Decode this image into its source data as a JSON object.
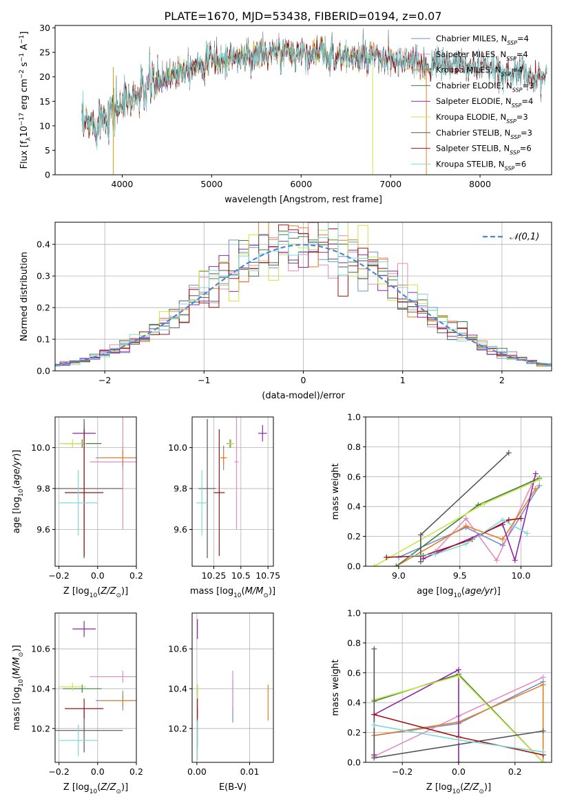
{
  "figure_title": "PLATE=1670, MJD=53438, FIBERID=0194, z=0.07",
  "colors": {
    "chabrier_miles": "#6e8fd6",
    "salpeter_miles": "#e58ac0",
    "kroupa_miles": "#e67e22",
    "chabrier_elodie": "#3e7d3e",
    "salpeter_elodie": "#8e24aa",
    "kroupa_elodie": "#c8e645",
    "chabrier_stelib": "#555555",
    "salpeter_stelib": "#a01010",
    "kroupa_stelib": "#7fd8d8",
    "normal": "#4a86d8",
    "grid": "#b0b0b0"
  },
  "chart_data": [
    {
      "type": "line",
      "id": "spectrum",
      "xlabel": "wavelength [Angstrom, rest frame]",
      "ylabel": "Flux [f_λ10^-17 erg cm^-2 s^-1 A^-1]",
      "xlim": [
        3250,
        8800
      ],
      "ylim": [
        0,
        30.5
      ],
      "xticks": [
        4000,
        5000,
        6000,
        7000,
        8000
      ],
      "yticks": [
        0,
        5,
        10,
        15,
        20,
        25,
        30
      ],
      "grid": false,
      "legend_position": "top-right",
      "continuum": {
        "x": [
          3550,
          3700,
          3900,
          4100,
          4300,
          4500,
          4700,
          4900,
          5100,
          5300,
          5500,
          5700,
          5900,
          6100,
          6300,
          6500,
          6700,
          6900,
          7100,
          7300,
          7500,
          7700,
          7900,
          8100,
          8300,
          8500,
          8700
        ],
        "y": [
          9.5,
          11.0,
          13.5,
          15.5,
          18.0,
          20.0,
          22.0,
          23.0,
          23.5,
          24.0,
          24.5,
          24.8,
          25.0,
          25.0,
          24.5,
          24.0,
          24.0,
          23.5,
          23.0,
          22.5,
          22.5,
          22.5,
          22.0,
          21.5,
          21.0,
          20.5,
          20.0
        ]
      },
      "series": [
        {
          "label": "Chabrier MILES",
          "nssp": "4",
          "color": "#6e8fd6",
          "xmax": 7400
        },
        {
          "label": "Salpeter MILES",
          "nssp": "4",
          "color": "#e58ac0",
          "xmax": 7400
        },
        {
          "label": "Kroupa MILES",
          "nssp": "4",
          "color": "#e67e22",
          "xmax": 7400
        },
        {
          "label": "Chabrier ELODIE",
          "nssp": "3",
          "color": "#3e7d3e",
          "xmax": 6800
        },
        {
          "label": "Salpeter ELODIE",
          "nssp": "4",
          "color": "#8e24aa",
          "xmax": 6800
        },
        {
          "label": "Kroupa ELODIE",
          "nssp": "3",
          "color": "#c8e645",
          "xmax": 6800
        },
        {
          "label": "Chabrier STELIB",
          "nssp": "3",
          "color": "#555555",
          "xmax": 8800
        },
        {
          "label": "Salpeter STELIB",
          "nssp": "6",
          "color": "#a01010",
          "xmax": 8800
        },
        {
          "label": "Kroupa STELIB",
          "nssp": "6",
          "color": "#7fd8d8",
          "xmax": 8800
        }
      ]
    },
    {
      "type": "histogram",
      "id": "residuals",
      "xlabel": "(data-model)/error",
      "ylabel": "Normed distribution",
      "xlim": [
        -2.5,
        2.5
      ],
      "ylim": [
        0,
        0.47
      ],
      "xticks": [
        -2,
        -1,
        0,
        1,
        2
      ],
      "yticks": [
        0.0,
        0.1,
        0.2,
        0.3,
        0.4
      ],
      "grid": true,
      "bin_width": 0.1,
      "legend_position": "top-right",
      "normal_label": "𝒩(0,1)",
      "series_colors": [
        "#6e8fd6",
        "#e58ac0",
        "#e67e22",
        "#3e7d3e",
        "#8e24aa",
        "#c8e645",
        "#555555",
        "#a01010",
        "#7fd8d8"
      ]
    },
    {
      "type": "scatter",
      "id": "age_vs_Z",
      "xlabel": "Z [log10(Z/Z☉)]",
      "ylabel": "age [log10(age/yr)]",
      "xlim": [
        -0.22,
        0.2
      ],
      "ylim": [
        9.42,
        10.15
      ],
      "xticks": [
        -0.2,
        0.0,
        0.2
      ],
      "yticks": [
        9.6,
        9.8,
        10.0
      ],
      "grid": true,
      "points": [
        {
          "x": 0.13,
          "y": 9.95,
          "xerr": 0.14,
          "yerr": 0.06,
          "color": "#6e8fd6"
        },
        {
          "x": 0.13,
          "y": 9.93,
          "xerr": 0.17,
          "yerr": 0.33,
          "color": "#e58ac0"
        },
        {
          "x": 0.13,
          "y": 9.95,
          "xerr": 0.12,
          "yerr": 0.04,
          "color": "#e67e22"
        },
        {
          "x": -0.08,
          "y": 10.02,
          "xerr": 0.1,
          "yerr": 0.02,
          "color": "#3e7d3e"
        },
        {
          "x": -0.07,
          "y": 10.07,
          "xerr": 0.06,
          "yerr": 0.04,
          "color": "#8e24aa"
        },
        {
          "x": -0.13,
          "y": 10.02,
          "xerr": 0.07,
          "yerr": 0.02,
          "color": "#c8e645"
        },
        {
          "x": -0.07,
          "y": 9.8,
          "xerr": 0.2,
          "yerr": 0.34,
          "color": "#555555"
        },
        {
          "x": -0.07,
          "y": 9.78,
          "xerr": 0.1,
          "yerr": 0.31,
          "color": "#a01010"
        },
        {
          "x": -0.1,
          "y": 9.73,
          "xerr": 0.1,
          "yerr": 0.16,
          "color": "#7fd8d8"
        }
      ]
    },
    {
      "type": "scatter",
      "id": "age_vs_mass",
      "xlabel": "mass [log10(M/M☉)]",
      "ylabel": "",
      "xlim": [
        10.05,
        10.8
      ],
      "ylim": [
        9.42,
        10.15
      ],
      "xticks": [
        10.25,
        10.5,
        10.75
      ],
      "yticks": [
        9.6,
        9.8,
        10.0
      ],
      "grid": true,
      "points": [
        {
          "x": 10.34,
          "y": 9.95,
          "xerr": 0.03,
          "yerr": 0.06,
          "color": "#6e8fd6"
        },
        {
          "x": 10.46,
          "y": 9.93,
          "xerr": 0.02,
          "yerr": 0.33,
          "color": "#e58ac0"
        },
        {
          "x": 10.34,
          "y": 9.95,
          "xerr": 0.03,
          "yerr": 0.04,
          "color": "#e67e22"
        },
        {
          "x": 10.4,
          "y": 10.02,
          "xerr": 0.03,
          "yerr": 0.02,
          "color": "#3e7d3e"
        },
        {
          "x": 10.7,
          "y": 10.07,
          "xerr": 0.04,
          "yerr": 0.04,
          "color": "#8e24aa"
        },
        {
          "x": 10.41,
          "y": 10.02,
          "xerr": 0.03,
          "yerr": 0.02,
          "color": "#c8e645"
        },
        {
          "x": 10.19,
          "y": 9.8,
          "xerr": 0.08,
          "yerr": 0.34,
          "color": "#555555"
        },
        {
          "x": 10.3,
          "y": 9.78,
          "xerr": 0.05,
          "yerr": 0.31,
          "color": "#a01010"
        },
        {
          "x": 10.14,
          "y": 9.73,
          "xerr": 0.05,
          "yerr": 0.16,
          "color": "#7fd8d8"
        }
      ]
    },
    {
      "type": "line",
      "id": "massweight_vs_age",
      "xlabel": "age [log10(age/yr)]",
      "ylabel": "mass weight",
      "xlim": [
        8.73,
        10.25
      ],
      "ylim": [
        0.0,
        1.0
      ],
      "xticks": [
        9.0,
        9.5,
        10.0
      ],
      "yticks": [
        0.0,
        0.2,
        0.4,
        0.6,
        0.8,
        1.0
      ],
      "grid": true,
      "series": [
        {
          "color": "#6e8fd6",
          "x": [
            9.0,
            9.55,
            9.85,
            10.15
          ],
          "y": [
            0.06,
            0.26,
            0.14,
            0.54
          ]
        },
        {
          "color": "#e58ac0",
          "x": [
            9.3,
            9.55,
            9.8,
            10.1
          ],
          "y": [
            0.1,
            0.32,
            0.04,
            0.57
          ]
        },
        {
          "color": "#e67e22",
          "x": [
            8.98,
            9.55,
            9.85,
            10.12
          ],
          "y": [
            0.0,
            0.27,
            0.18,
            0.52
          ]
        },
        {
          "color": "#3e7d3e",
          "x": [
            8.98,
            9.65,
            10.15
          ],
          "y": [
            0.0,
            0.41,
            0.59
          ]
        },
        {
          "color": "#8e24aa",
          "x": [
            9.2,
            9.85,
            9.95,
            10.12
          ],
          "y": [
            0.05,
            0.28,
            0.04,
            0.62
          ]
        },
        {
          "color": "#c8e645",
          "x": [
            8.8,
            9.7,
            10.15
          ],
          "y": [
            0.0,
            0.42,
            0.58
          ]
        },
        {
          "color": "#555555",
          "x": [
            9.18,
            9.18,
            9.9
          ],
          "y": [
            0.03,
            0.21,
            0.76
          ]
        },
        {
          "color": "#a01010",
          "x": [
            8.9,
            9.2,
            9.6,
            9.9,
            10.0
          ],
          "y": [
            0.06,
            0.07,
            0.18,
            0.31,
            0.32
          ]
        },
        {
          "color": "#7fd8d8",
          "x": [
            9.1,
            9.3,
            9.55,
            9.85,
            10.05
          ],
          "y": [
            0.07,
            0.08,
            0.15,
            0.31,
            0.22
          ]
        }
      ]
    },
    {
      "type": "scatter",
      "id": "mass_vs_Z",
      "xlabel": "Z [log10(Z/Z☉)]",
      "ylabel": "mass [log10(M/M☉)]",
      "xlim": [
        -0.22,
        0.2
      ],
      "ylim": [
        10.03,
        10.78
      ],
      "xticks": [
        -0.2,
        0.0,
        0.2
      ],
      "yticks": [
        10.2,
        10.4,
        10.6
      ],
      "grid": true,
      "points": [
        {
          "x": 0.13,
          "y": 10.34,
          "xerr": 0.14,
          "yerr": 0.05,
          "color": "#6e8fd6"
        },
        {
          "x": 0.13,
          "y": 10.46,
          "xerr": 0.17,
          "yerr": 0.03,
          "color": "#e58ac0"
        },
        {
          "x": 0.13,
          "y": 10.34,
          "xerr": 0.12,
          "yerr": 0.03,
          "color": "#e67e22"
        },
        {
          "x": -0.08,
          "y": 10.4,
          "xerr": 0.1,
          "yerr": 0.02,
          "color": "#3e7d3e"
        },
        {
          "x": -0.07,
          "y": 10.7,
          "xerr": 0.06,
          "yerr": 0.04,
          "color": "#8e24aa"
        },
        {
          "x": -0.13,
          "y": 10.41,
          "xerr": 0.07,
          "yerr": 0.02,
          "color": "#c8e645"
        },
        {
          "x": -0.07,
          "y": 10.19,
          "xerr": 0.2,
          "yerr": 0.11,
          "color": "#555555"
        },
        {
          "x": -0.07,
          "y": 10.3,
          "xerr": 0.1,
          "yerr": 0.05,
          "color": "#a01010"
        },
        {
          "x": -0.1,
          "y": 10.14,
          "xerr": 0.1,
          "yerr": 0.08,
          "color": "#7fd8d8"
        }
      ]
    },
    {
      "type": "scatter",
      "id": "mass_vs_EBV",
      "xlabel": "E(B-V)",
      "ylabel": "",
      "xlim": [
        -0.0009,
        0.0145
      ],
      "ylim": [
        10.03,
        10.78
      ],
      "xticks": [
        0.0,
        0.01
      ],
      "yticks": [
        10.2,
        10.4,
        10.6
      ],
      "grid": true,
      "points": [
        {
          "x": 0.0068,
          "y": 10.34,
          "xerr": 0.0,
          "yerr": 0.11,
          "color": "#6e8fd6"
        },
        {
          "x": 0.0068,
          "y": 10.4,
          "xerr": 0.0,
          "yerr": 0.09,
          "color": "#e58ac0"
        },
        {
          "x": 0.0135,
          "y": 10.33,
          "xerr": 0.0,
          "yerr": 0.09,
          "color": "#e67e22"
        },
        {
          "x": 0.0001,
          "y": 10.38,
          "xerr": 0.0,
          "yerr": 0.04,
          "color": "#3e7d3e"
        },
        {
          "x": 0.0001,
          "y": 10.7,
          "xerr": 0.0,
          "yerr": 0.05,
          "color": "#8e24aa"
        },
        {
          "x": 0.0001,
          "y": 10.38,
          "xerr": 0.0,
          "yerr": 0.04,
          "color": "#c8e645"
        },
        {
          "x": 0.0001,
          "y": 10.2,
          "xerr": 0.0,
          "yerr": 0.1,
          "color": "#555555"
        },
        {
          "x": 0.0001,
          "y": 10.3,
          "xerr": 0.0,
          "yerr": 0.05,
          "color": "#a01010"
        },
        {
          "x": 0.0001,
          "y": 10.14,
          "xerr": 0.0,
          "yerr": 0.1,
          "color": "#7fd8d8"
        }
      ]
    },
    {
      "type": "line",
      "id": "massweight_vs_Z",
      "xlabel": "Z [log10(Z/Z☉)]",
      "ylabel": "mass weight",
      "xlim": [
        -0.33,
        0.33
      ],
      "ylim": [
        0.0,
        1.0
      ],
      "xticks": [
        -0.2,
        0.0,
        0.2
      ],
      "yticks": [
        0.0,
        0.2,
        0.4,
        0.6,
        0.8,
        1.0
      ],
      "grid": true,
      "series": [
        {
          "color": "#6e8fd6",
          "x": [
            -0.3,
            0.0,
            0.3,
            0.3
          ],
          "y": [
            0.18,
            0.26,
            0.54,
            0.0
          ]
        },
        {
          "color": "#e58ac0",
          "x": [
            -0.3,
            0.0,
            0.3
          ],
          "y": [
            0.04,
            0.31,
            0.57
          ]
        },
        {
          "color": "#e67e22",
          "x": [
            -0.3,
            0.0,
            0.3,
            0.3
          ],
          "y": [
            0.18,
            0.27,
            0.52,
            0.0
          ]
        },
        {
          "color": "#3e7d3e",
          "x": [
            -0.3,
            0.0,
            0.3
          ],
          "y": [
            0.41,
            0.59,
            0.0
          ]
        },
        {
          "color": "#8e24aa",
          "x": [
            -0.3,
            -0.3,
            0.0,
            0.0
          ],
          "y": [
            0.05,
            0.32,
            0.62,
            0.0
          ]
        },
        {
          "color": "#c8e645",
          "x": [
            -0.3,
            0.0,
            0.3
          ],
          "y": [
            0.42,
            0.58,
            0.0
          ]
        },
        {
          "color": "#555555",
          "x": [
            -0.3,
            -0.3,
            0.3
          ],
          "y": [
            0.76,
            0.03,
            0.21
          ]
        },
        {
          "color": "#a01010",
          "x": [
            -0.3,
            0.0,
            0.3
          ],
          "y": [
            0.32,
            0.17,
            0.05
          ]
        },
        {
          "color": "#7fd8d8",
          "x": [
            -0.3,
            0.0,
            0.3
          ],
          "y": [
            0.25,
            0.15,
            0.07
          ]
        }
      ]
    }
  ]
}
